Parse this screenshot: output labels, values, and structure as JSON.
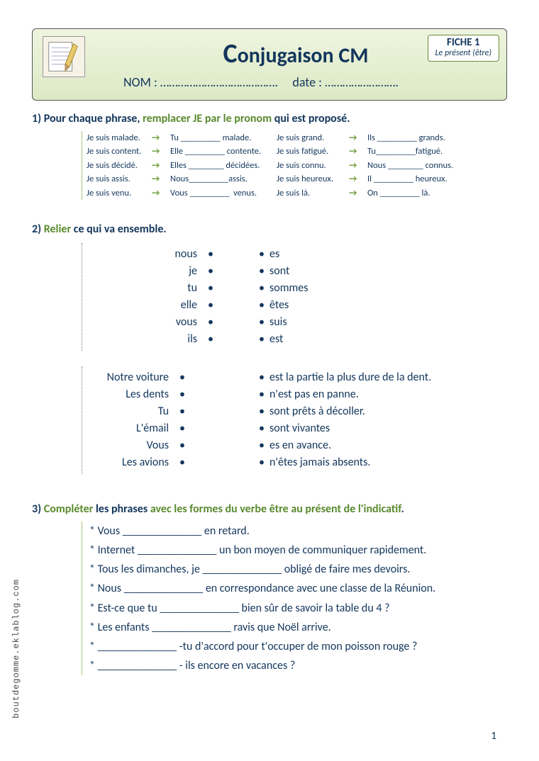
{
  "header": {
    "title_prefix": "C",
    "title_rest": "onjugaison CM",
    "nom_label": "NOM : ………………………………….",
    "date_label": "date : …………………….",
    "fiche_num": "FICHE 1",
    "fiche_sub": "Le présent (être)"
  },
  "q1": {
    "num": "1) ",
    "lead": "Pour chaque phrase, ",
    "green": "remplacer JE par le pronom",
    "tail": " qui est proposé.",
    "rows": [
      {
        "a": "Je suis malade.",
        "b": "Tu _________ malade.",
        "c": "Je suis grand.",
        "d": "Ils _________ grands."
      },
      {
        "a": "Je suis content.",
        "b": "Elle _________ contente.",
        "c": "Je suis fatigué.",
        "d": "Tu_________fatigué."
      },
      {
        "a": "Je suis décidé.",
        "b": "Elles ________ décidées.",
        "c": "Je suis connu.",
        "d": "Nous ________ connus."
      },
      {
        "a": "Je suis assis.",
        "b": "Nous_________assis.",
        "c": "Je suis heureux.",
        "d": "Il _________ heureux."
      },
      {
        "a": "Je suis venu.",
        "b": "Vous _________  venus.",
        "c": "Je suis là.",
        "d": "On _________ là."
      }
    ]
  },
  "q2": {
    "num": "2) ",
    "green": "Relier",
    "tail": " ce qui va ensemble.",
    "set1_left": [
      "nous",
      "je",
      "tu",
      "elle",
      "vous",
      "ils"
    ],
    "set1_right": [
      "es",
      "sont",
      "sommes",
      "êtes",
      "suis",
      "est"
    ],
    "set2_left": [
      "Notre voiture",
      "Les dents",
      "Tu",
      "L'émail",
      "Vous",
      "Les avions"
    ],
    "set2_right": [
      "est la partie la plus dure de la dent.",
      "n'est pas en panne.",
      "sont prêts à décoller.",
      "sont vivantes",
      "es en avance.",
      "n'êtes jamais absents."
    ]
  },
  "q3": {
    "num": "3) ",
    "green": "Compléter",
    "mid": " les phrases ",
    "green2": "avec les formes du verbe être au présent de l'indicatif",
    "tail": ".",
    "lines": [
      "* Vous ______________ en retard.",
      "* Internet ______________ un bon moyen de communiquer rapidement.",
      "* Tous les dimanches, je ______________ obligé de faire mes devoirs.",
      "* Nous ______________ en correspondance avec une classe de la Réunion.",
      "* Est-ce que tu ______________ bien sûr de savoir la table du 4 ?",
      "* Les enfants ______________ ravis que Noël arrive.",
      "* ______________ -tu d'accord pour t'occuper de mon poisson rouge ?",
      "* ______________ - ils encore en vacances ?"
    ]
  },
  "footer": {
    "vtext": "boutdegomme.eklablog.com",
    "page": "1"
  },
  "style": {
    "green": "#5a8a2e",
    "navy": "#13365c",
    "arrow_color": "#6a9a32"
  }
}
